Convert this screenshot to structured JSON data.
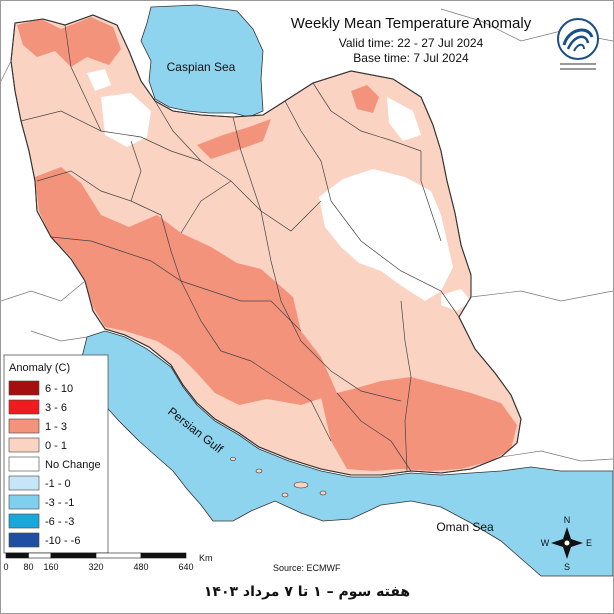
{
  "title": {
    "main": "Weekly Mean Temperature Anomaly",
    "valid": "Valid time: 22 - 27 Jul 2024",
    "base": "Base time: 7 Jul 2024"
  },
  "labels": {
    "caspian": "Caspian Sea",
    "gulf": "Persian Gulf",
    "oman": "Oman Sea",
    "source": "Source: ECMWF"
  },
  "legend": {
    "title": "Anomaly (C)",
    "items": [
      {
        "label": "6 - 10",
        "color": "#a50f0f"
      },
      {
        "label": "3 - 6",
        "color": "#ee1c1c"
      },
      {
        "label": "1 - 3",
        "color": "#f4937c"
      },
      {
        "label": "0 - 1",
        "color": "#fbd3c2"
      },
      {
        "label": "No Change",
        "color": "#ffffff"
      },
      {
        "label": "-1 - 0",
        "color": "#c6e6f7"
      },
      {
        "label": "-3 - -1",
        "color": "#7fd0ee"
      },
      {
        "label": "-6 - -3",
        "color": "#1aa8dc"
      },
      {
        "label": "-10 - -6",
        "color": "#1f4fa3"
      }
    ]
  },
  "scale": {
    "unit": "Km",
    "ticks": [
      "0",
      "80",
      "160",
      "320",
      "480",
      "640"
    ]
  },
  "compass": {
    "n": "N",
    "s": "S",
    "e": "E",
    "w": "W"
  },
  "footer": "هفته سوم – ۱ تا ۷ مرداد ۱۴۰۳",
  "colors": {
    "sea": "#8fd4ee",
    "land_outside": "#ffffff",
    "anomaly_1_3": "#f4937c",
    "anomaly_0_1": "#fbd3c2",
    "no_change": "#ffffff"
  }
}
